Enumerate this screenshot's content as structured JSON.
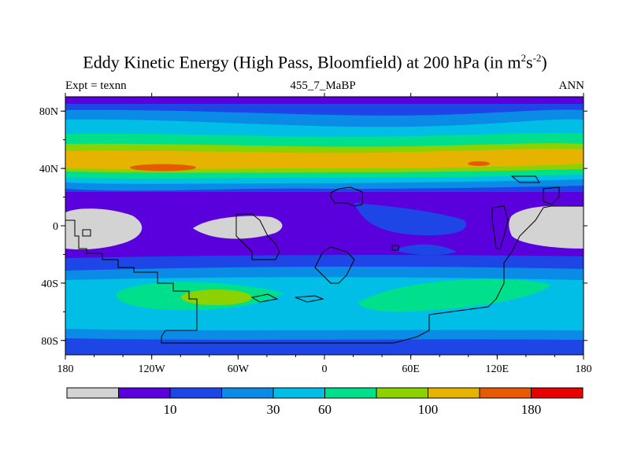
{
  "title": {
    "main": "Eddy Kinetic Energy (High Pass, Bloomfield) at 200 hPa (in m",
    "sup1": "2",
    "mid": "s",
    "sup2": "-2",
    "end": ")"
  },
  "left_label": "Expt = texnn",
  "center_label": "455_7_MaBP",
  "right_label": "ANN",
  "map": {
    "lon_ticks": [
      "180",
      "120W",
      "60W",
      "0",
      "60E",
      "120E",
      "180"
    ],
    "lat_ticks": [
      "80N",
      "40N",
      "0",
      "40S",
      "80S"
    ],
    "lat_tick_values": [
      80,
      40,
      0,
      -40,
      -80
    ],
    "lon_range": [
      -180,
      180
    ],
    "lat_range": [
      -90,
      90
    ]
  },
  "colorbar": {
    "colors": [
      "#d3d3d3",
      "#5a00dc",
      "#1e46e6",
      "#0a8ce6",
      "#00bee6",
      "#00e08c",
      "#8cd200",
      "#e6b400",
      "#e65a00",
      "#e60000"
    ],
    "labels": [
      {
        "text": "10",
        "boundary": 2
      },
      {
        "text": "30",
        "boundary": 4
      },
      {
        "text": "60",
        "boundary": 5
      },
      {
        "text": "100",
        "boundary": 7
      },
      {
        "text": "180",
        "boundary": 9
      }
    ]
  }
}
